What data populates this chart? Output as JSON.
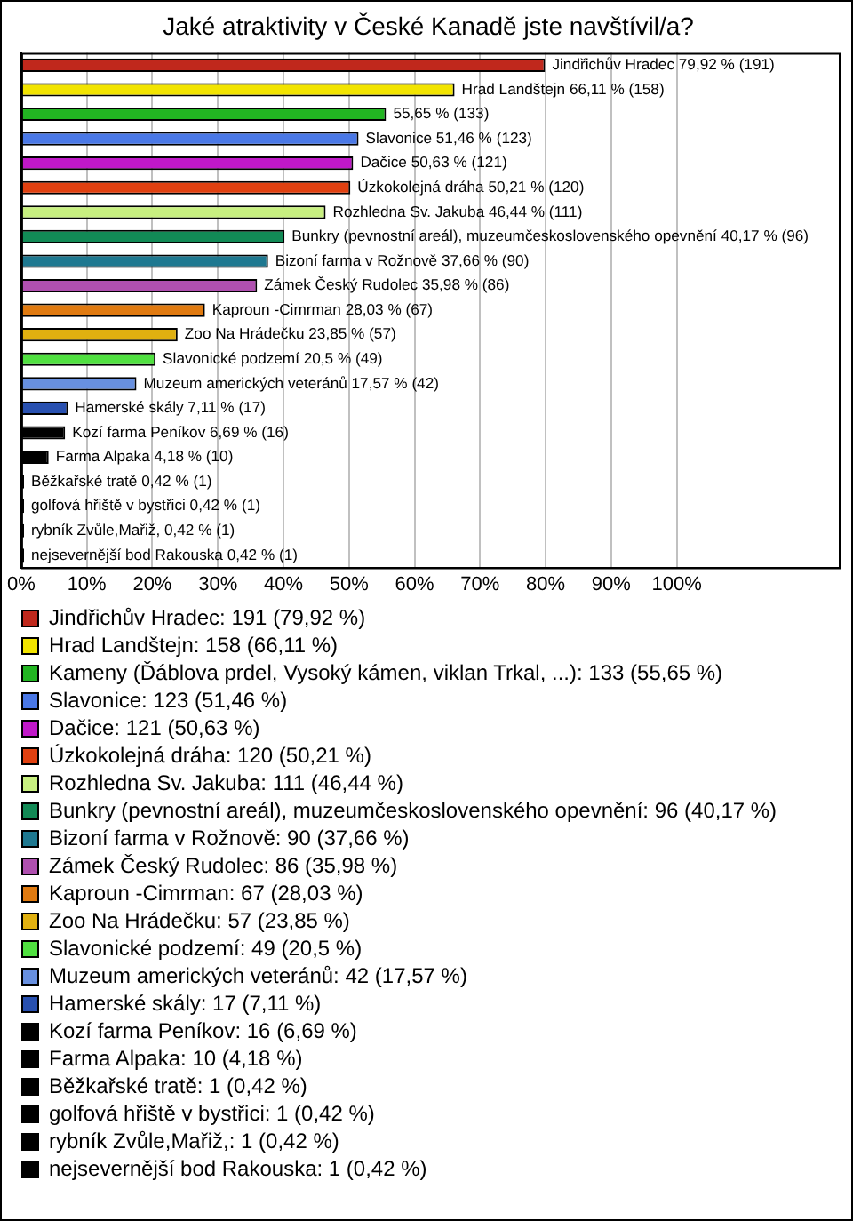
{
  "chart_data": {
    "type": "bar",
    "orientation": "horizontal",
    "title": "Jaké atraktivity v České Kanadě jste navštívil/a?",
    "categories": [
      null,
      null,
      null,
      null,
      null,
      null,
      null,
      null,
      null,
      null,
      null,
      null,
      null,
      null,
      null,
      null,
      null,
      null,
      null,
      null,
      null
    ],
    "series": [
      {
        "name": "Jindřichův Hradec: 191 (79,92 %)",
        "color": "#c0281c",
        "values": [
          79.92,
          null,
          null,
          null,
          null,
          null,
          null,
          null,
          null,
          null,
          null,
          null,
          null,
          null,
          null,
          null,
          null,
          null,
          null,
          null,
          null
        ],
        "value_labels": [
          "Jindřichův Hradec 79,92 % (191)",
          null,
          null,
          null,
          null,
          null,
          null,
          null,
          null,
          null,
          null,
          null,
          null,
          null,
          null,
          null,
          null,
          null,
          null,
          null,
          null
        ]
      },
      {
        "name": "Hrad Landštejn: 158 (66,11 %)",
        "color": "#f2e400",
        "values": [
          null,
          66.11,
          null,
          null,
          null,
          null,
          null,
          null,
          null,
          null,
          null,
          null,
          null,
          null,
          null,
          null,
          null,
          null,
          null,
          null,
          null
        ],
        "value_labels": [
          null,
          "Hrad Landštejn 66,11 % (158)",
          null,
          null,
          null,
          null,
          null,
          null,
          null,
          null,
          null,
          null,
          null,
          null,
          null,
          null,
          null,
          null,
          null,
          null,
          null
        ]
      },
      {
        "name": "Kameny (Ďáblova prdel, Vysoký kámen, viklan Trkal, ...): 133 (55,65 %)",
        "color": "#22b522",
        "values": [
          null,
          null,
          55.65,
          null,
          null,
          null,
          null,
          null,
          null,
          null,
          null,
          null,
          null,
          null,
          null,
          null,
          null,
          null,
          null,
          null,
          null
        ],
        "value_labels": [
          null,
          null,
          "55,65 % (133)",
          null,
          null,
          null,
          null,
          null,
          null,
          null,
          null,
          null,
          null,
          null,
          null,
          null,
          null,
          null,
          null,
          null,
          null
        ]
      },
      {
        "name": "Slavonice: 123 (51,46 %)",
        "color": "#4a78e6",
        "values": [
          null,
          null,
          null,
          51.46,
          null,
          null,
          null,
          null,
          null,
          null,
          null,
          null,
          null,
          null,
          null,
          null,
          null,
          null,
          null,
          null,
          null
        ],
        "value_labels": [
          null,
          null,
          null,
          "Slavonice 51,46 % (123)",
          null,
          null,
          null,
          null,
          null,
          null,
          null,
          null,
          null,
          null,
          null,
          null,
          null,
          null,
          null,
          null,
          null
        ]
      },
      {
        "name": "Dačice: 121 (50,63 %)",
        "color": "#c018c8",
        "values": [
          null,
          null,
          null,
          null,
          50.63,
          null,
          null,
          null,
          null,
          null,
          null,
          null,
          null,
          null,
          null,
          null,
          null,
          null,
          null,
          null,
          null
        ],
        "value_labels": [
          null,
          null,
          null,
          null,
          "Dačice 50,63 % (121)",
          null,
          null,
          null,
          null,
          null,
          null,
          null,
          null,
          null,
          null,
          null,
          null,
          null,
          null,
          null,
          null
        ]
      },
      {
        "name": "Úzkokolejná dráha: 120 (50,21 %)",
        "color": "#e04010",
        "values": [
          null,
          null,
          null,
          null,
          null,
          50.21,
          null,
          null,
          null,
          null,
          null,
          null,
          null,
          null,
          null,
          null,
          null,
          null,
          null,
          null,
          null
        ],
        "value_labels": [
          null,
          null,
          null,
          null,
          null,
          "Úzkokolejná dráha 50,21 % (120)",
          null,
          null,
          null,
          null,
          null,
          null,
          null,
          null,
          null,
          null,
          null,
          null,
          null,
          null,
          null
        ]
      },
      {
        "name": "Rozhledna Sv. Jakuba: 111 (46,44 %)",
        "color": "#c8f080",
        "values": [
          null,
          null,
          null,
          null,
          null,
          null,
          46.44,
          null,
          null,
          null,
          null,
          null,
          null,
          null,
          null,
          null,
          null,
          null,
          null,
          null,
          null
        ],
        "value_labels": [
          null,
          null,
          null,
          null,
          null,
          null,
          "Rozhledna Sv. Jakuba 46,44 % (111)",
          null,
          null,
          null,
          null,
          null,
          null,
          null,
          null,
          null,
          null,
          null,
          null,
          null,
          null
        ]
      },
      {
        "name": "Bunkry (pevnostní areál), muzeumčeskoslovenského opevnění: 96 (40,17 %)",
        "color": "#128a56",
        "values": [
          null,
          null,
          null,
          null,
          null,
          null,
          null,
          40.17,
          null,
          null,
          null,
          null,
          null,
          null,
          null,
          null,
          null,
          null,
          null,
          null,
          null
        ],
        "value_labels": [
          null,
          null,
          null,
          null,
          null,
          null,
          null,
          "Bunkry (pevnostní areál), muzeumčeskoslovenského opevnění 40,17 % (96)",
          null,
          null,
          null,
          null,
          null,
          null,
          null,
          null,
          null,
          null,
          null,
          null,
          null
        ]
      },
      {
        "name": "Bizoní farma v Rožnově: 90 (37,66 %)",
        "color": "#1e7890",
        "values": [
          null,
          null,
          null,
          null,
          null,
          null,
          null,
          null,
          37.66,
          null,
          null,
          null,
          null,
          null,
          null,
          null,
          null,
          null,
          null,
          null,
          null
        ],
        "value_labels": [
          null,
          null,
          null,
          null,
          null,
          null,
          null,
          null,
          "Bizoní farma v Rožnově 37,66 % (90)",
          null,
          null,
          null,
          null,
          null,
          null,
          null,
          null,
          null,
          null,
          null,
          null
        ]
      },
      {
        "name": "Zámek Český Rudolec: 86 (35,98 %)",
        "color": "#b050b0",
        "values": [
          null,
          null,
          null,
          null,
          null,
          null,
          null,
          null,
          null,
          35.98,
          null,
          null,
          null,
          null,
          null,
          null,
          null,
          null,
          null,
          null,
          null
        ],
        "value_labels": [
          null,
          null,
          null,
          null,
          null,
          null,
          null,
          null,
          null,
          "Zámek Český Rudolec 35,98 % (86)",
          null,
          null,
          null,
          null,
          null,
          null,
          null,
          null,
          null,
          null,
          null
        ]
      },
      {
        "name": "Kaproun -Cimrman: 67 (28,03 %)",
        "color": "#e07a10",
        "values": [
          null,
          null,
          null,
          null,
          null,
          null,
          null,
          null,
          null,
          null,
          28.03,
          null,
          null,
          null,
          null,
          null,
          null,
          null,
          null,
          null,
          null
        ],
        "value_labels": [
          null,
          null,
          null,
          null,
          null,
          null,
          null,
          null,
          null,
          null,
          "Kaproun -Cimrman 28,03 % (67)",
          null,
          null,
          null,
          null,
          null,
          null,
          null,
          null,
          null,
          null
        ]
      },
      {
        "name": "Zoo Na Hrádečku: 57 (23,85 %)",
        "color": "#e0b010",
        "values": [
          null,
          null,
          null,
          null,
          null,
          null,
          null,
          null,
          null,
          null,
          null,
          23.85,
          null,
          null,
          null,
          null,
          null,
          null,
          null,
          null,
          null
        ],
        "value_labels": [
          null,
          null,
          null,
          null,
          null,
          null,
          null,
          null,
          null,
          null,
          null,
          "Zoo Na Hrádečku 23,85 % (57)",
          null,
          null,
          null,
          null,
          null,
          null,
          null,
          null,
          null
        ]
      },
      {
        "name": "Slavonické podzemí: 49 (20,5 %)",
        "color": "#50e040",
        "values": [
          null,
          null,
          null,
          null,
          null,
          null,
          null,
          null,
          null,
          null,
          null,
          null,
          20.5,
          null,
          null,
          null,
          null,
          null,
          null,
          null,
          null
        ],
        "value_labels": [
          null,
          null,
          null,
          null,
          null,
          null,
          null,
          null,
          null,
          null,
          null,
          null,
          "Slavonické podzemí 20,5 % (49)",
          null,
          null,
          null,
          null,
          null,
          null,
          null,
          null
        ]
      },
      {
        "name": "Muzeum amerických veteránů: 42 (17,57 %)",
        "color": "#6890e0",
        "values": [
          null,
          null,
          null,
          null,
          null,
          null,
          null,
          null,
          null,
          null,
          null,
          null,
          null,
          17.57,
          null,
          null,
          null,
          null,
          null,
          null,
          null
        ],
        "value_labels": [
          null,
          null,
          null,
          null,
          null,
          null,
          null,
          null,
          null,
          null,
          null,
          null,
          null,
          "Muzeum amerických veteránů 17,57 % (42)",
          null,
          null,
          null,
          null,
          null,
          null,
          null
        ]
      },
      {
        "name": "Hamerské skály: 17 (7,11 %)",
        "color": "#2850b0",
        "values": [
          null,
          null,
          null,
          null,
          null,
          null,
          null,
          null,
          null,
          null,
          null,
          null,
          null,
          null,
          7.11,
          null,
          null,
          null,
          null,
          null,
          null
        ],
        "value_labels": [
          null,
          null,
          null,
          null,
          null,
          null,
          null,
          null,
          null,
          null,
          null,
          null,
          null,
          null,
          "Hamerské skály 7,11 % (17)",
          null,
          null,
          null,
          null,
          null,
          null
        ]
      },
      {
        "name": "Kozí farma Peníkov: 16 (6,69 %)",
        "color": "#000000",
        "values": [
          null,
          null,
          null,
          null,
          null,
          null,
          null,
          null,
          null,
          null,
          null,
          null,
          null,
          null,
          null,
          6.69,
          null,
          null,
          null,
          null,
          null
        ],
        "value_labels": [
          null,
          null,
          null,
          null,
          null,
          null,
          null,
          null,
          null,
          null,
          null,
          null,
          null,
          null,
          null,
          "Kozí farma Peníkov 6,69 % (16)",
          null,
          null,
          null,
          null,
          null
        ]
      },
      {
        "name": "Farma Alpaka: 10 (4,18 %)",
        "color": "#000000",
        "values": [
          null,
          null,
          null,
          null,
          null,
          null,
          null,
          null,
          null,
          null,
          null,
          null,
          null,
          null,
          null,
          null,
          4.18,
          null,
          null,
          null,
          null
        ],
        "value_labels": [
          null,
          null,
          null,
          null,
          null,
          null,
          null,
          null,
          null,
          null,
          null,
          null,
          null,
          null,
          null,
          null,
          "Farma Alpaka 4,18 % (10)",
          null,
          null,
          null,
          null
        ]
      },
      {
        "name": "Běžkařské tratě: 1 (0,42 %)",
        "color": "#000000",
        "values": [
          null,
          null,
          null,
          null,
          null,
          null,
          null,
          null,
          null,
          null,
          null,
          null,
          null,
          null,
          null,
          null,
          null,
          0.42,
          null,
          null,
          null
        ],
        "value_labels": [
          null,
          null,
          null,
          null,
          null,
          null,
          null,
          null,
          null,
          null,
          null,
          null,
          null,
          null,
          null,
          null,
          null,
          "Běžkařské tratě 0,42 % (1)",
          null,
          null,
          null
        ]
      },
      {
        "name": "golfová hřiště v bystřici: 1 (0,42 %)",
        "color": "#000000",
        "values": [
          null,
          null,
          null,
          null,
          null,
          null,
          null,
          null,
          null,
          null,
          null,
          null,
          null,
          null,
          null,
          null,
          null,
          null,
          0.42,
          null,
          null
        ],
        "value_labels": [
          null,
          null,
          null,
          null,
          null,
          null,
          null,
          null,
          null,
          null,
          null,
          null,
          null,
          null,
          null,
          null,
          null,
          null,
          "golfová hřiště v bystřici 0,42 % (1)",
          null,
          null
        ]
      },
      {
        "name": "rybník Zvůle,Mařiž,: 1 (0,42 %)",
        "color": "#000000",
        "values": [
          null,
          null,
          null,
          null,
          null,
          null,
          null,
          null,
          null,
          null,
          null,
          null,
          null,
          null,
          null,
          null,
          null,
          null,
          null,
          0.42,
          null
        ],
        "value_labels": [
          null,
          null,
          null,
          null,
          null,
          null,
          null,
          null,
          null,
          null,
          null,
          null,
          null,
          null,
          null,
          null,
          null,
          null,
          null,
          "rybník Zvůle,Mařiž, 0,42 % (1)",
          null
        ]
      },
      {
        "name": "nejsevernější bod Rakouska: 1 (0,42 %)",
        "color": "#000000",
        "values": [
          null,
          null,
          null,
          null,
          null,
          null,
          null,
          null,
          null,
          null,
          null,
          null,
          null,
          null,
          null,
          null,
          null,
          null,
          null,
          null,
          0.42
        ],
        "value_labels": [
          null,
          null,
          null,
          null,
          null,
          null,
          null,
          null,
          null,
          null,
          null,
          null,
          null,
          null,
          null,
          null,
          null,
          null,
          null,
          null,
          "nejsevernější bod Rakouska 0,42 % (1)"
        ]
      }
    ],
    "xlim": [
      0,
      125
    ],
    "xticks": [
      {
        "value": 0,
        "label": "0%"
      },
      {
        "value": 10,
        "label": "10%"
      },
      {
        "value": 20,
        "label": "20%"
      },
      {
        "value": 30,
        "label": "30%"
      },
      {
        "value": 40,
        "label": "40%"
      },
      {
        "value": 50,
        "label": "50%"
      },
      {
        "value": 60,
        "label": "60%"
      },
      {
        "value": 70,
        "label": "70%"
      },
      {
        "value": 80,
        "label": "80%"
      },
      {
        "value": 90,
        "label": "90%"
      },
      {
        "value": 100,
        "label": "100%"
      }
    ],
    "grid": "x",
    "legend": "bottom",
    "tick_labels": "x"
  }
}
